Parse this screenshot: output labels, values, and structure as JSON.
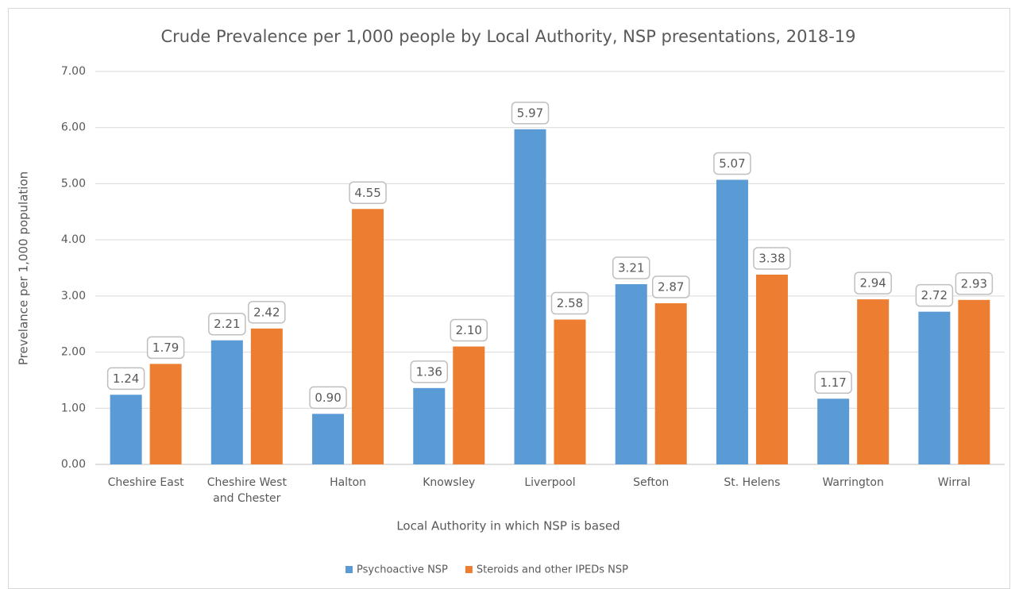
{
  "chart_data": {
    "type": "bar",
    "title": "Crude Prevalence per 1,000 people by Local Authority, NSP presentations, 2018-19",
    "x_label": "Local Authority in which NSP is based",
    "y_label": "Prevelance per 1,000 population",
    "categories": [
      "Cheshire East",
      "Cheshire West and Chester",
      "Halton",
      "Knowsley",
      "Liverpool",
      "Sefton",
      "St. Helens",
      "Warrington",
      "Wirral"
    ],
    "series": [
      {
        "name": "Psychoactive NSP",
        "color": "#5b9bd5",
        "values": [
          1.24,
          2.21,
          0.9,
          1.36,
          5.97,
          3.21,
          5.07,
          1.17,
          2.72
        ],
        "value_labels": [
          "1.24",
          "2.21",
          "0.90",
          "1.36",
          "5.97",
          "3.21",
          "5.07",
          "1.17",
          "2.72"
        ]
      },
      {
        "name": "Steroids and other IPEDs NSP",
        "color": "#ed7d31",
        "values": [
          1.79,
          2.42,
          4.55,
          2.1,
          2.58,
          2.87,
          3.38,
          2.94,
          2.93
        ],
        "value_labels": [
          "1.79",
          "2.42",
          "4.55",
          "2.10",
          "2.58",
          "2.87",
          "3.38",
          "2.94",
          "2.93"
        ]
      }
    ],
    "ylim": [
      0,
      7
    ],
    "yticks": [
      {
        "value": 0,
        "label": "0.00"
      },
      {
        "value": 1,
        "label": "1.00"
      },
      {
        "value": 2,
        "label": "2.00"
      },
      {
        "value": 3,
        "label": "3.00"
      },
      {
        "value": 4,
        "label": "4.00"
      },
      {
        "value": 5,
        "label": "5.00"
      },
      {
        "value": 6,
        "label": "6.00"
      },
      {
        "value": 7,
        "label": "7.00"
      }
    ],
    "grid": true,
    "legend": "bottom"
  }
}
